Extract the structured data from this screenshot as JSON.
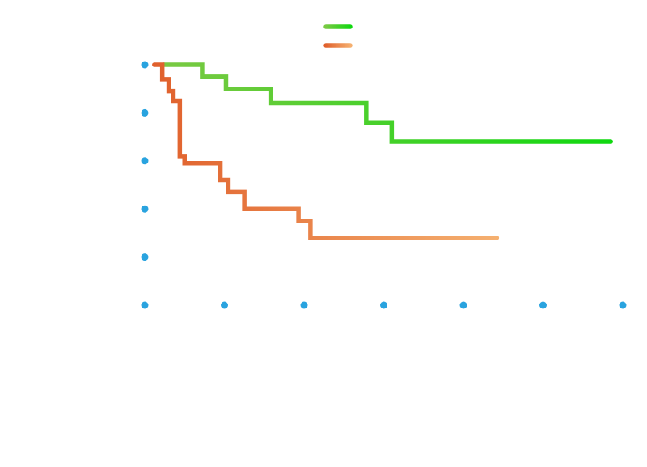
{
  "chart_data": {
    "type": "line",
    "title": "",
    "xlabel": "",
    "ylabel": "",
    "xlim": [
      0,
      6
    ],
    "ylim": [
      0,
      5
    ],
    "x_ticks": [
      0,
      1,
      2,
      3,
      4,
      5,
      6
    ],
    "y_ticks": [
      0,
      1,
      2,
      3,
      4,
      5
    ],
    "grid": false,
    "legend_position": "top-center",
    "marker_color": "#29a3df",
    "series": [
      {
        "step": true,
        "gradient": [
          "#7ac943",
          "#10d810"
        ],
        "x": [
          0.23,
          0.72,
          1.02,
          1.58,
          2.78,
          3.1,
          5.85
        ],
        "y": [
          5.0,
          4.75,
          4.5,
          4.2,
          3.8,
          3.4,
          3.4
        ]
      },
      {
        "step": true,
        "gradient": [
          "#e0602c",
          "#f5b070"
        ],
        "x": [
          0.12,
          0.22,
          0.3,
          0.36,
          0.44,
          0.5,
          0.95,
          1.05,
          1.25,
          1.93,
          2.08,
          4.42
        ],
        "y": [
          5.0,
          4.7,
          4.45,
          4.25,
          3.1,
          2.95,
          2.6,
          2.35,
          2.0,
          1.75,
          1.4,
          1.4
        ]
      }
    ]
  }
}
